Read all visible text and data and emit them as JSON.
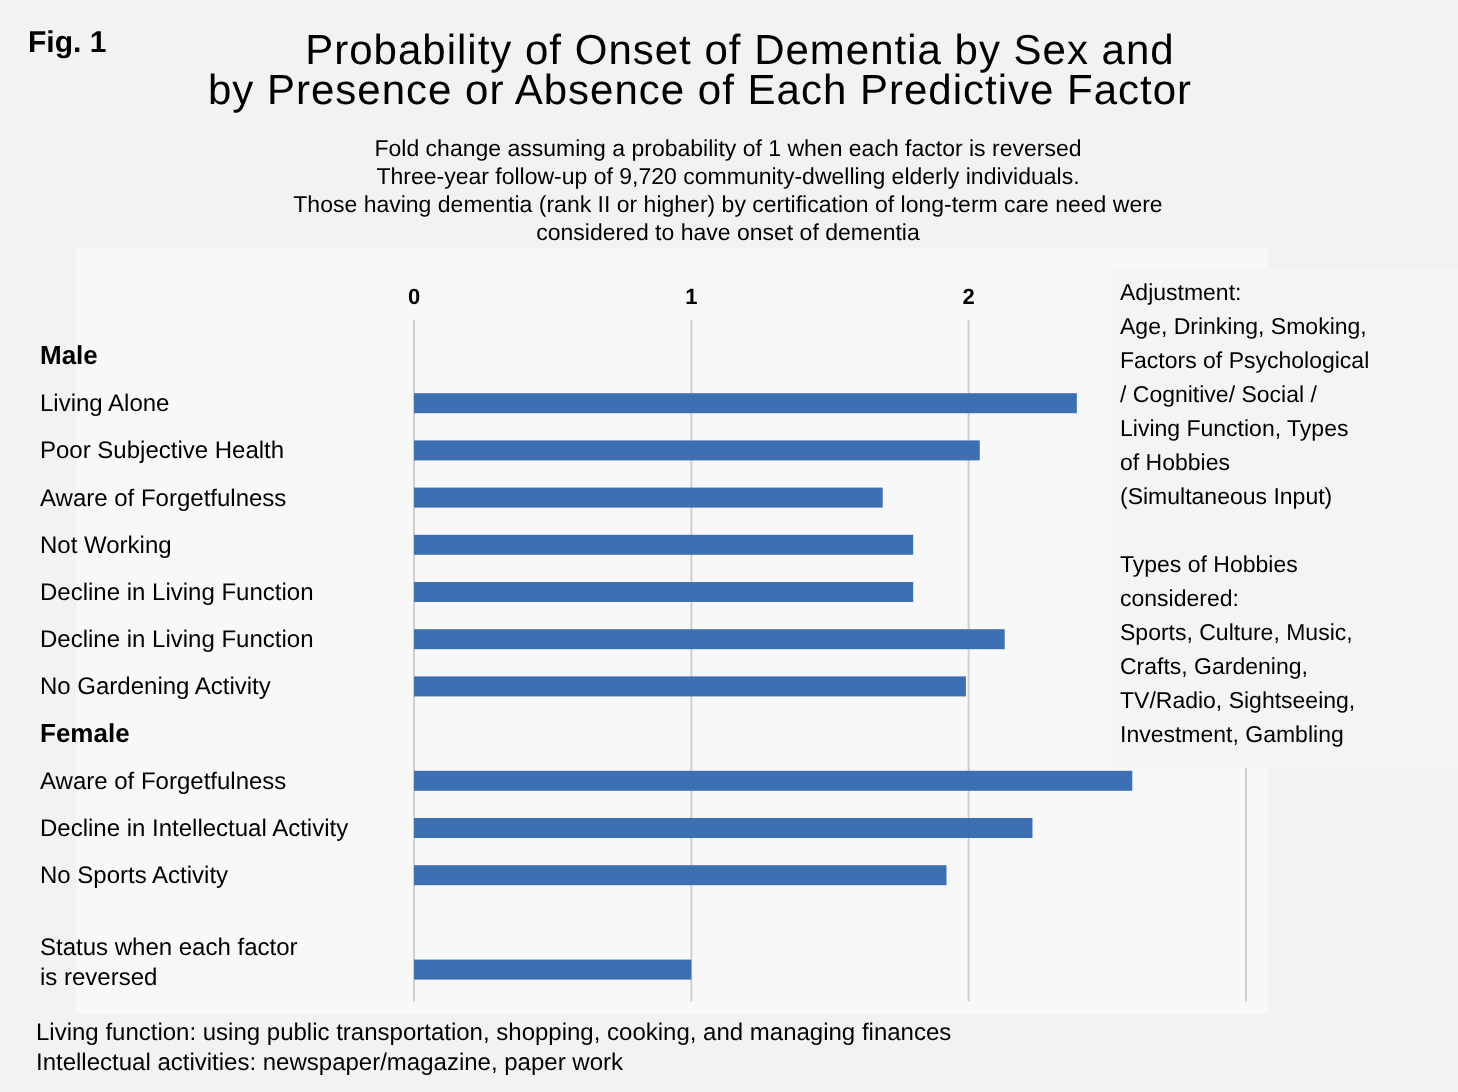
{
  "chart_data": {
    "type": "bar",
    "orientation": "horizontal",
    "title": "Probability of Onset of Dementia by Sex and\nby Presence or Absence of Each Predictive Factor",
    "subtitle": "Fold change assuming a probability of 1 when each factor is reversed\nThree-year follow-up of 9,720 community-dwelling elderly individuals.\nThose having dementia (rank II or higher) by certification of long-term care need were\nconsidered to have onset of dementia",
    "categories": [
      "Male",
      "Living Alone",
      "Poor Subjective Health",
      "Aware of Forgetfulness",
      "Not Working",
      "Decline in Living Function",
      "Decline in Living Function",
      "No Gardening Activity",
      "Female",
      "Aware of Forgetfulness",
      "Decline in Intellectual Activity",
      "No Sports Activity",
      null,
      "Status when each factor\nis reversed"
    ],
    "values": [
      null,
      2.39,
      2.04,
      1.69,
      1.8,
      1.8,
      2.13,
      1.99,
      null,
      2.59,
      2.23,
      1.92,
      null,
      1.0
    ],
    "color": "#3d6fb3",
    "xlim": [
      0,
      3
    ],
    "xticks": [
      0,
      1,
      2,
      {
        "value": 3,
        "label": null
      }
    ],
    "grid": "x",
    "annotations": [
      "Fig. 1",
      "Adjustment:\nAge, Drinking, Smoking,\nFactors of Psychological\n/ Cognitive/ Social /\nLiving Function, Types\nof Hobbies\n(Simultaneous Input)",
      "Types of Hobbies\nconsidered:\nSports, Culture, Music,\nCrafts, Gardening,\nTV/Radio, Sightseeing,\nInvestment, Gambling",
      "Living function: using public transportation, shopping, cooking, and managing finances\nIntellectual activities: newspaper/magazine, paper work"
    ]
  }
}
